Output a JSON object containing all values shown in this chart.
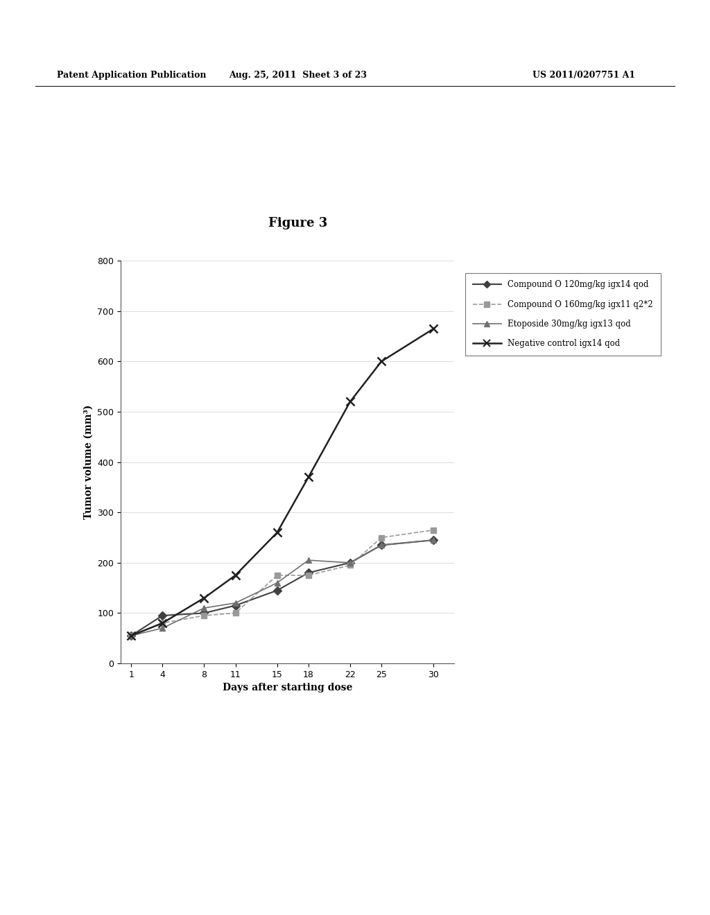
{
  "title": "Figure 3",
  "xlabel": "Days after starting dose",
  "ylabel": "Tumor volume (mm³)",
  "xlim": [
    0,
    32
  ],
  "ylim": [
    0,
    800
  ],
  "yticks": [
    0,
    100,
    200,
    300,
    400,
    500,
    600,
    700,
    800
  ],
  "xticks": [
    1,
    4,
    8,
    11,
    15,
    18,
    22,
    25,
    30
  ],
  "days": [
    1,
    4,
    8,
    11,
    15,
    18,
    22,
    25,
    30
  ],
  "series": [
    {
      "label": "Compound O 120mg/kg igx14 qod",
      "color": "#404040",
      "marker": "D",
      "markersize": 6,
      "linewidth": 1.5,
      "linestyle": "solid",
      "values": [
        55,
        95,
        100,
        115,
        145,
        180,
        200,
        235,
        245
      ]
    },
    {
      "label": "Compound O 160mg/kg igx11 q2*2",
      "color": "#999999",
      "marker": "s",
      "markersize": 6,
      "linewidth": 1.2,
      "linestyle": "dashed",
      "values": [
        55,
        80,
        95,
        100,
        175,
        175,
        195,
        250,
        265
      ]
    },
    {
      "label": "Etoposide 30mg/kg igx13 qod",
      "color": "#707070",
      "marker": "^",
      "markersize": 6,
      "linewidth": 1.2,
      "linestyle": "solid",
      "values": [
        55,
        70,
        110,
        120,
        160,
        205,
        200,
        235,
        245
      ]
    },
    {
      "label": "Negative control igx14 qod",
      "color": "#202020",
      "marker": "x",
      "markersize": 8,
      "linewidth": 1.8,
      "linestyle": "solid",
      "values": [
        55,
        80,
        130,
        175,
        260,
        370,
        520,
        600,
        665
      ]
    }
  ],
  "header_left": "Patent Application Publication",
  "header_middle": "Aug. 25, 2011  Sheet 3 of 23",
  "header_right": "US 2011/0207751 A1",
  "background_color": "#ffffff",
  "fig_title_fontsize": 13,
  "axis_label_fontsize": 10,
  "tick_fontsize": 9,
  "legend_fontsize": 8.5,
  "header_fontsize": 9
}
